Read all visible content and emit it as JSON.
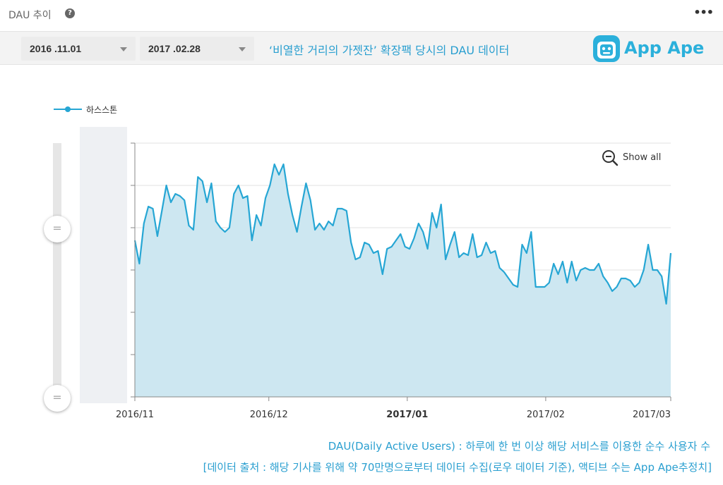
{
  "panel": {
    "title": "DAU 추이",
    "help_icon": "help-circle-icon",
    "more_icon": "more-dots-icon",
    "more_label": "•••"
  },
  "filters": {
    "start_date": "2016 .11.01",
    "end_date": "2017 .02.28",
    "note": "‘비열한 거리의 가젯잔’ 확장팩 당시의 DAU 데이터"
  },
  "brand": {
    "name": "App Ape",
    "color": "#2bb0db"
  },
  "controls": {
    "show_all_label": "Show all",
    "show_all_icon": "zoom-out-icon",
    "handle_glyph": "="
  },
  "chart_data": {
    "type": "area",
    "title": "",
    "xlabel": "",
    "ylabel": "",
    "x_start": "2016-11-01",
    "x_end": "2017-03-01",
    "ylim": [
      0,
      6
    ],
    "grid": true,
    "legend_position": "top-left",
    "x_ticks": [
      "2016/11",
      "2016/12",
      "2017/01",
      "2017/02",
      "2017/03"
    ],
    "x_tick_bold": [
      false,
      false,
      true,
      false,
      false
    ],
    "series": [
      {
        "name": "하스스톤",
        "color": "#26a6d4",
        "fill": "#cde7f1",
        "values": [
          3.7,
          3.15,
          4.1,
          4.5,
          4.45,
          3.8,
          4.4,
          5.0,
          4.6,
          4.8,
          4.75,
          4.65,
          4.05,
          3.95,
          5.2,
          5.1,
          4.6,
          5.05,
          4.15,
          4.0,
          3.9,
          4.0,
          4.8,
          5.0,
          4.7,
          4.75,
          3.7,
          4.3,
          4.05,
          4.7,
          5.0,
          5.5,
          5.25,
          5.5,
          4.8,
          4.3,
          3.9,
          4.5,
          5.05,
          4.65,
          3.95,
          4.1,
          3.95,
          4.15,
          4.05,
          4.45,
          4.45,
          4.4,
          3.65,
          3.25,
          3.3,
          3.65,
          3.6,
          3.4,
          3.45,
          2.9,
          3.5,
          3.55,
          3.7,
          3.85,
          3.55,
          3.5,
          3.75,
          4.1,
          3.9,
          3.5,
          4.35,
          4.0,
          4.55,
          3.25,
          3.6,
          3.9,
          3.3,
          3.4,
          3.35,
          3.85,
          3.3,
          3.35,
          3.65,
          3.4,
          3.45,
          3.05,
          2.95,
          2.8,
          2.65,
          2.6,
          3.6,
          3.4,
          3.9,
          2.6,
          2.6,
          2.6,
          2.7,
          3.15,
          2.9,
          3.2,
          2.7,
          3.2,
          2.75,
          3.0,
          3.05,
          3.0,
          3.0,
          3.15,
          2.85,
          2.7,
          2.5,
          2.6,
          2.8,
          2.8,
          2.75,
          2.6,
          2.7,
          3.0,
          3.6,
          3.0,
          3.0,
          2.85,
          2.2,
          3.4
        ]
      }
    ]
  },
  "footnotes": {
    "line1": "DAU(Daily Active Users) : 하루에 한 번 이상 해당 서비스를 이용한 순수 사용자 수",
    "line2": "[데이터 출처 : 해당 기사를 위해 약 70만명으로부터 데이터 수집(로우 데이터 기준), 액티브 수는 App Ape추정치]"
  }
}
